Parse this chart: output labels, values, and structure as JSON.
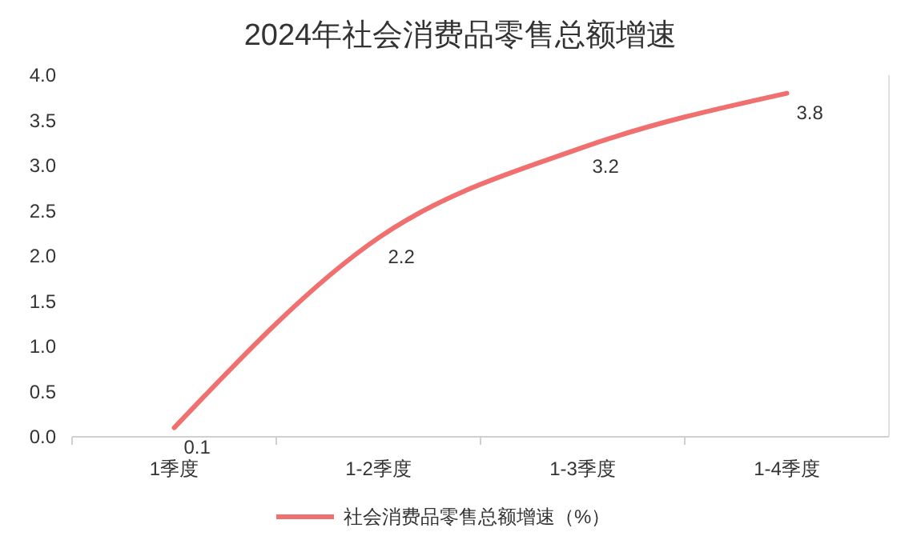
{
  "chart_data": {
    "type": "line",
    "title": "2024年社会消费品零售总额增速",
    "categories": [
      "1季度",
      "1-2季度",
      "1-3季度",
      "1-4季度"
    ],
    "series": [
      {
        "name": "社会消费品零售总额增速（%）",
        "color": "#f07070",
        "values": [
          0.1,
          2.2,
          3.2,
          3.8
        ]
      }
    ],
    "ylim": [
      0,
      4
    ],
    "yticks": [
      {
        "value": 0,
        "label": "0.0"
      },
      {
        "value": 0.5,
        "label": "0.5"
      },
      {
        "value": 1,
        "label": "1.0"
      },
      {
        "value": 1.5,
        "label": "1.5"
      },
      {
        "value": 2,
        "label": "2.0"
      },
      {
        "value": 2.5,
        "label": "2.5"
      },
      {
        "value": 3,
        "label": "3.0"
      },
      {
        "value": 3.5,
        "label": "3.5"
      },
      {
        "value": 4,
        "label": "4.0"
      }
    ],
    "data_labels": true,
    "legend": "bottom",
    "grid": false,
    "marker": "none",
    "line_style": "solid"
  }
}
